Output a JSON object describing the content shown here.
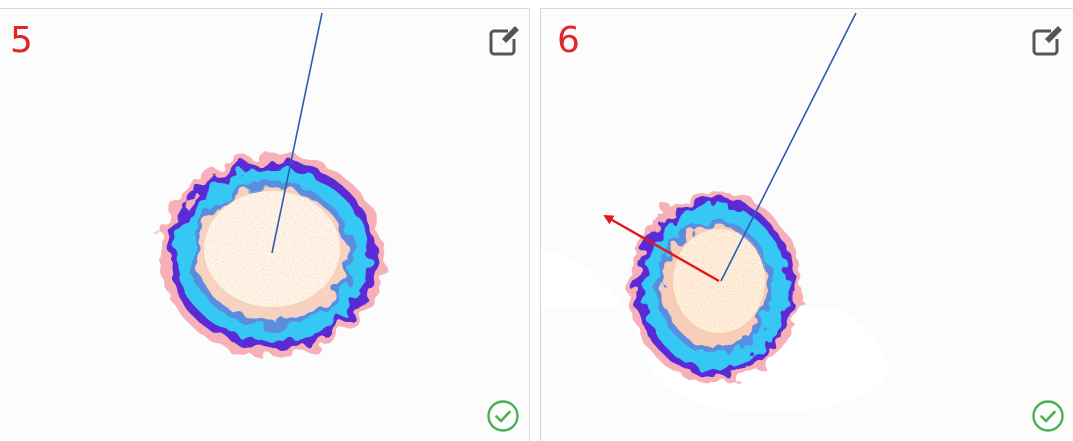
{
  "panels": [
    {
      "number": "5",
      "icons": {
        "edit": "edit-icon",
        "status": "check-circle-icon"
      }
    },
    {
      "number": "6",
      "icons": {
        "edit": "edit-icon",
        "status": "check-circle-icon"
      }
    }
  ],
  "colors": {
    "number": "#e0262b",
    "guide_line": "#2a5db0",
    "arrow": "#e2171d",
    "ring_outer": "#5a2cd6",
    "ring_cyan": "#34c8f4",
    "ring_inner": "#f3c79a",
    "status_ok": "#4caf50"
  }
}
